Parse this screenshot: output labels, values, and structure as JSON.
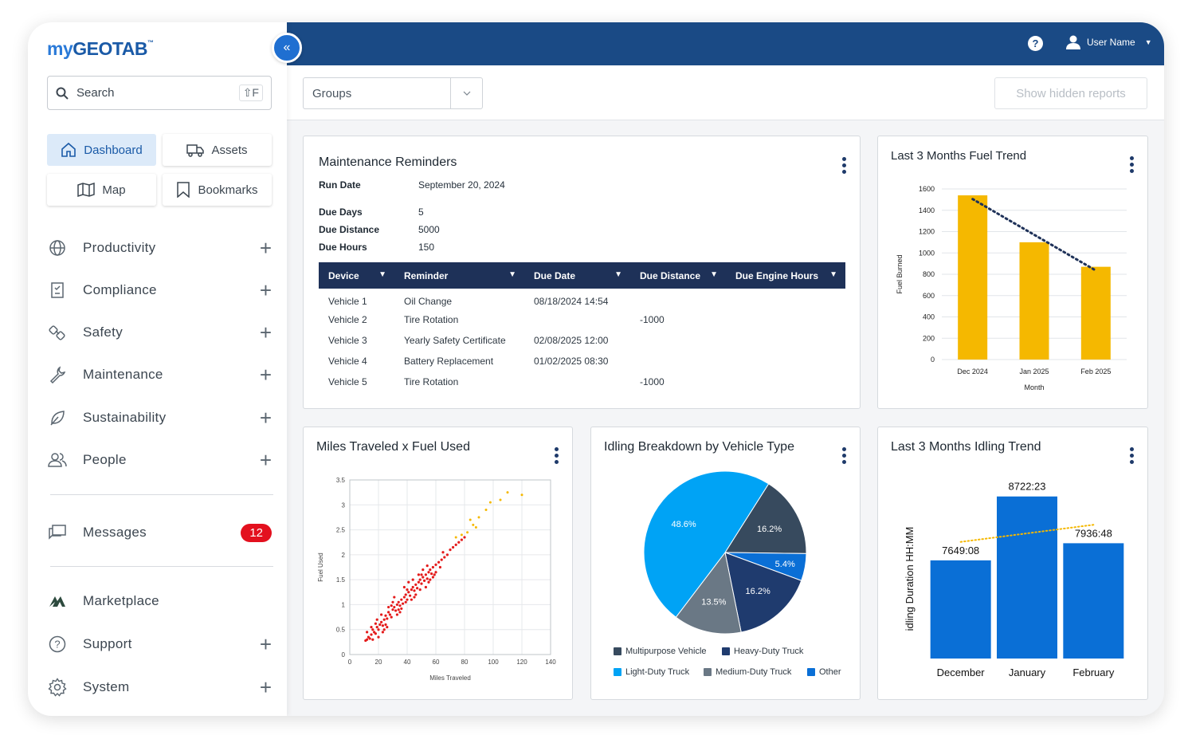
{
  "brand": {
    "logo_my": "my",
    "logo_main": "GEOTAB",
    "logo_tm": "™"
  },
  "search": {
    "label": "Search",
    "shortcut": "⇧F"
  },
  "quick_links": [
    {
      "label": "Dashboard",
      "icon": "home-icon",
      "active": true
    },
    {
      "label": "Assets",
      "icon": "truck-icon"
    },
    {
      "label": "Map",
      "icon": "map-icon"
    },
    {
      "label": "Bookmarks",
      "icon": "bookmark-icon"
    }
  ],
  "nav": [
    {
      "label": "Productivity",
      "icon": "globe-icon"
    },
    {
      "label": "Compliance",
      "icon": "clipboard-icon"
    },
    {
      "label": "Safety",
      "icon": "safety-icon"
    },
    {
      "label": "Maintenance",
      "icon": "wrench-icon"
    },
    {
      "label": "Sustainability",
      "icon": "leaf-icon"
    },
    {
      "label": "People",
      "icon": "people-icon"
    }
  ],
  "messages": {
    "label": "Messages",
    "count": "12"
  },
  "bottom_nav": [
    {
      "label": "Marketplace",
      "icon": "marketplace-icon"
    },
    {
      "label": "Support",
      "icon": "question-icon"
    },
    {
      "label": "System",
      "icon": "gear-icon"
    }
  ],
  "header": {
    "help": "?",
    "user_name": "User Name"
  },
  "toolbar": {
    "groups_label": "Groups",
    "hidden_reports_label": "Show hidden reports"
  },
  "maintenance": {
    "title": "Maintenance Reminders",
    "run_date_label": "Run Date",
    "run_date": "September 20, 2024",
    "due_days_label": "Due Days",
    "due_days": "5",
    "due_distance_label": "Due Distance",
    "due_distance": "5000",
    "due_hours_label": "Due Hours",
    "due_hours": "150",
    "columns": [
      "Device",
      "Reminder",
      "Due Date",
      "Due Distance",
      "Due Engine Hours"
    ],
    "rows": [
      [
        "Vehicle 1",
        "Oil Change",
        "08/18/2024 14:54",
        "",
        ""
      ],
      [
        "Vehicle 2",
        "Tire Rotation",
        "",
        "-1000",
        ""
      ],
      [
        "Vehicle 3",
        "Yearly Safety Certificate",
        "02/08/2025 12:00",
        "",
        ""
      ],
      [
        "Vehicle 4",
        "Battery Replacement",
        "01/02/2025 08:30",
        "",
        ""
      ],
      [
        "Vehicle 5",
        "Tire Rotation",
        "",
        "-1000",
        ""
      ]
    ]
  },
  "chart_data": [
    {
      "id": "fuel",
      "type": "bar",
      "title": "Last 3 Months Fuel Trend",
      "categories": [
        "Dec 2024",
        "Jan 2025",
        "Feb 2025"
      ],
      "values": [
        1540,
        1100,
        870
      ],
      "trendline": true,
      "xlabel": "Month",
      "ylabel": "Fuel Burned",
      "ylim": [
        0,
        1600
      ],
      "yticks": [
        "0",
        "200",
        "400",
        "600",
        "800",
        "1000",
        "1200",
        "1400",
        "1600"
      ],
      "bar_color": "#f5b800",
      "grid": true
    },
    {
      "id": "scatter",
      "type": "scatter",
      "title": "Miles Traveled x Fuel Used",
      "xlabel": "Miles Traveled",
      "ylabel": "Fuel Used",
      "xlim": [
        0,
        140
      ],
      "ylim": [
        0,
        3.5
      ],
      "xticks": [
        "0",
        "20",
        "40",
        "60",
        "80",
        "100",
        "120",
        "140"
      ],
      "yticks": [
        "0",
        "0.5",
        "1",
        "1.5",
        "2",
        "2.5",
        "3",
        "3.5"
      ],
      "grid": true,
      "points": [
        [
          11,
          0.28
        ],
        [
          13,
          0.35
        ],
        [
          15,
          0.4
        ],
        [
          12,
          0.3
        ],
        [
          17,
          0.45
        ],
        [
          14,
          0.32
        ],
        [
          16,
          0.5
        ],
        [
          19,
          0.55
        ],
        [
          18,
          0.42
        ],
        [
          21,
          0.6
        ],
        [
          20,
          0.5
        ],
        [
          22,
          0.65
        ],
        [
          24,
          0.7
        ],
        [
          23,
          0.58
        ],
        [
          25,
          0.78
        ],
        [
          26,
          0.72
        ],
        [
          27,
          0.85
        ],
        [
          28,
          0.8
        ],
        [
          30,
          0.9
        ],
        [
          29,
          0.75
        ],
        [
          31,
          0.95
        ],
        [
          32,
          0.88
        ],
        [
          33,
          1.0
        ],
        [
          34,
          1.05
        ],
        [
          35,
          0.98
        ],
        [
          36,
          1.1
        ],
        [
          37,
          1.02
        ],
        [
          38,
          1.15
        ],
        [
          39,
          1.2
        ],
        [
          40,
          1.1
        ],
        [
          41,
          1.25
        ],
        [
          42,
          1.18
        ],
        [
          43,
          1.3
        ],
        [
          44,
          1.35
        ],
        [
          45,
          1.28
        ],
        [
          46,
          1.4
        ],
        [
          47,
          1.33
        ],
        [
          48,
          1.45
        ],
        [
          49,
          1.5
        ],
        [
          50,
          1.42
        ],
        [
          51,
          1.55
        ],
        [
          52,
          1.48
        ],
        [
          53,
          1.6
        ],
        [
          54,
          1.52
        ],
        [
          55,
          1.65
        ],
        [
          56,
          1.7
        ],
        [
          57,
          1.62
        ],
        [
          58,
          1.75
        ],
        [
          60,
          1.8
        ],
        [
          62,
          1.85
        ],
        [
          64,
          1.9
        ],
        [
          66,
          1.95
        ],
        [
          68,
          2.0
        ],
        [
          70,
          2.1
        ],
        [
          72,
          2.15
        ],
        [
          74,
          2.2
        ],
        [
          76,
          2.25
        ],
        [
          78,
          2.3
        ],
        [
          80,
          2.35
        ],
        [
          15,
          0.55
        ],
        [
          20,
          0.35
        ],
        [
          25,
          0.6
        ],
        [
          30,
          1.05
        ],
        [
          35,
          0.85
        ],
        [
          40,
          1.3
        ],
        [
          45,
          1.15
        ],
        [
          50,
          1.6
        ],
        [
          55,
          1.45
        ],
        [
          60,
          1.65
        ],
        [
          19,
          0.7
        ],
        [
          23,
          0.45
        ],
        [
          27,
          0.95
        ],
        [
          33,
          0.8
        ],
        [
          38,
          1.35
        ],
        [
          43,
          1.1
        ],
        [
          48,
          1.6
        ],
        [
          53,
          1.35
        ],
        [
          58,
          1.55
        ],
        [
          63,
          1.75
        ],
        [
          12,
          0.45
        ],
        [
          16,
          0.3
        ],
        [
          22,
          0.8
        ],
        [
          26,
          0.55
        ],
        [
          31,
          1.15
        ],
        [
          36,
          0.92
        ],
        [
          41,
          1.45
        ],
        [
          46,
          1.2
        ],
        [
          51,
          1.7
        ],
        [
          56,
          1.5
        ],
        [
          18,
          0.62
        ],
        [
          24,
          0.5
        ],
        [
          29,
          0.98
        ],
        [
          34,
          0.9
        ],
        [
          39,
          1.05
        ],
        [
          44,
          1.5
        ],
        [
          49,
          1.3
        ],
        [
          54,
          1.78
        ],
        [
          59,
          1.6
        ],
        [
          65,
          2.05
        ]
      ],
      "highlight_points": [
        [
          74,
          2.35
        ],
        [
          82,
          2.45
        ],
        [
          86,
          2.6
        ],
        [
          90,
          2.75
        ],
        [
          95,
          2.9
        ],
        [
          88,
          2.55
        ],
        [
          98,
          3.05
        ],
        [
          105,
          3.1
        ],
        [
          110,
          3.25
        ],
        [
          120,
          3.2
        ],
        [
          78,
          2.4
        ],
        [
          84,
          2.7
        ]
      ],
      "point_color": "#e41b1b",
      "highlight_color": "#f5b800"
    },
    {
      "id": "idling_pie",
      "type": "pie",
      "title": "Idling Breakdown by Vehicle Type",
      "slices": [
        {
          "label": "Multipurpose Vehicle",
          "value": 16.2,
          "text": "16.2%",
          "color": "#374a5e"
        },
        {
          "label": "Other",
          "value": 5.4,
          "text": "5.4%",
          "color": "#0a6fd6"
        },
        {
          "label": "Heavy-Duty Truck",
          "value": 16.2,
          "text": "16.2%",
          "color": "#1f3b6e"
        },
        {
          "label": "Medium-Duty Truck",
          "value": 13.5,
          "text": "13.5%",
          "color": "#6a7885"
        },
        {
          "label": "Light-Duty Truck",
          "value": 48.6,
          "text": "48.6%",
          "color": "#00a3f5"
        }
      ],
      "legend": [
        "Multipurpose Vehicle",
        "Heavy-Duty Truck",
        "Light-Duty Truck",
        "Medium-Duty Truck",
        "Other"
      ]
    },
    {
      "id": "idling",
      "type": "bar",
      "title": "Last 3 Months Idling Trend",
      "categories": [
        "December",
        "January",
        "February"
      ],
      "values": [
        7649.13,
        8722.38,
        7936.8
      ],
      "data_labels": [
        "7649:08",
        "8722:23",
        "7936:48"
      ],
      "ylabel": "idling Duration HH:MM",
      "ylim": [
        6000,
        9000
      ],
      "trendline": true,
      "bar_color": "#0a6fd6"
    }
  ]
}
